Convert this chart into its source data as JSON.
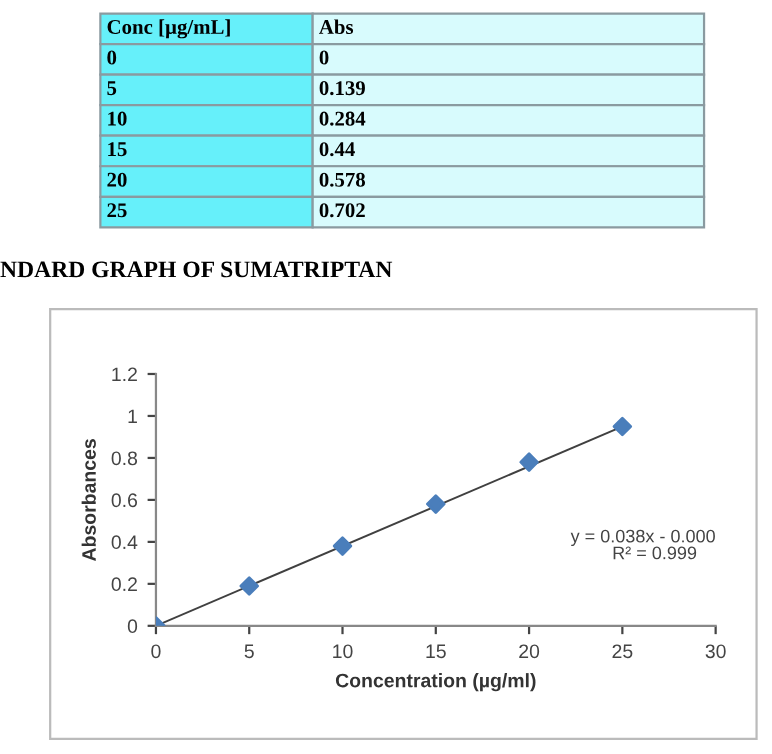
{
  "chart_data": {
    "type": "scatter",
    "title": "NDARD GRAPH OF SUMATRIPTAN",
    "xlabel": "Concentration (µg/ml)",
    "ylabel": "Absorbances",
    "x": [
      0,
      5,
      10,
      15,
      20,
      25
    ],
    "series": [
      {
        "color": "#4a7ebb",
        "values": [
          0,
          0.19,
          0.38,
          0.58,
          0.78,
          0.95
        ],
        "marker": "diamond"
      },
      {
        "type": "line",
        "color": "#404040",
        "x": [
          0,
          25
        ],
        "values": [
          0,
          0.95
        ],
        "marker": "none",
        "line_style": "solid"
      }
    ],
    "xlim": [
      0,
      30
    ],
    "xticks": [
      0,
      5,
      10,
      15,
      20,
      25,
      30
    ],
    "ylim": [
      0,
      1.2
    ],
    "yticks": [
      0,
      0.2,
      0.4,
      0.6,
      0.8,
      1,
      1.2
    ],
    "grid": false,
    "legend": false,
    "annotations": [
      "Conc [µg/mL]",
      "Abs",
      "0",
      "0",
      "5",
      "0.139",
      "10",
      "0.284",
      "15",
      "0.44",
      "20",
      "0.578",
      "25",
      "0.702",
      "y = 0.038x - 0.000",
      "R² = 0.999"
    ]
  }
}
